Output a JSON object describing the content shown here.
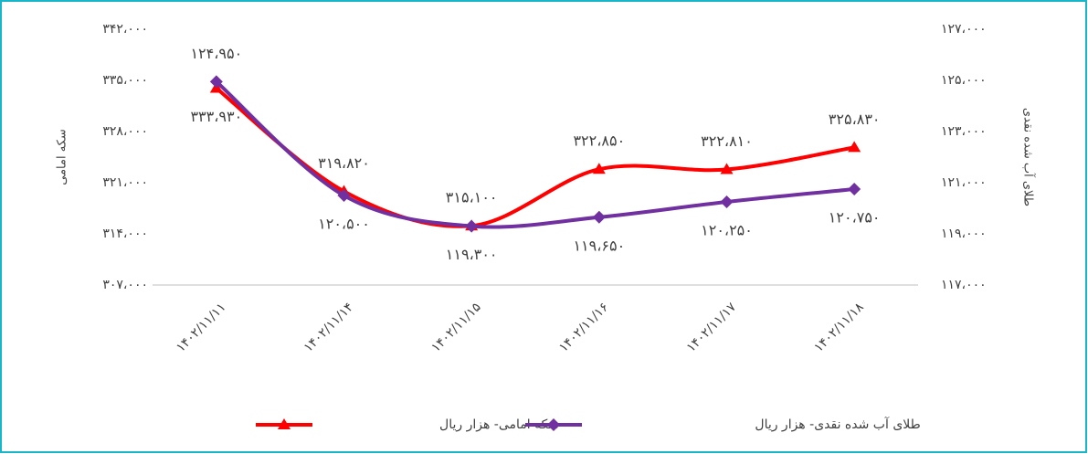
{
  "chart_data": {
    "type": "line",
    "categories": [
      "۱۴۰۲/۱۱/۱۱",
      "۱۴۰۲/۱۱/۱۴",
      "۱۴۰۲/۱۱/۱۵",
      "۱۴۰۲/۱۱/۱۶",
      "۱۴۰۲/۱۱/۱۷",
      "۱۴۰۲/۱۱/۱۸"
    ],
    "ylabel": "سکه امامی",
    "y2label": "طلای آب شده نقدی",
    "ylim": [
      307000,
      342000
    ],
    "yticks": [
      {
        "value": 307000,
        "label": "۳۰۷،۰۰۰"
      },
      {
        "value": 314000,
        "label": "۳۱۴،۰۰۰"
      },
      {
        "value": 321000,
        "label": "۳۲۱،۰۰۰"
      },
      {
        "value": 328000,
        "label": "۳۲۸،۰۰۰"
      },
      {
        "value": 335000,
        "label": "۳۳۵،۰۰۰"
      },
      {
        "value": 342000,
        "label": "۳۴۲،۰۰۰"
      }
    ],
    "y2lim": [
      117000,
      127000
    ],
    "y2ticks": [
      {
        "value": 117000,
        "label": "۱۱۷،۰۰۰"
      },
      {
        "value": 119000,
        "label": "۱۱۹،۰۰۰"
      },
      {
        "value": 121000,
        "label": "۱۲۱،۰۰۰"
      },
      {
        "value": 123000,
        "label": "۱۲۳،۰۰۰"
      },
      {
        "value": 125000,
        "label": "۱۲۵،۰۰۰"
      },
      {
        "value": 127000,
        "label": "۱۲۷،۰۰۰"
      }
    ],
    "series": [
      {
        "name": "سکه امامی- هزار ریال",
        "color": "#ff0000",
        "marker": "triangle",
        "values": [
          333930,
          319820,
          315100,
          322850,
          322810,
          325830
        ],
        "value_labels": [
          "۳۳۳،۹۳۰",
          "۳۱۹،۸۲۰",
          "۳۱۵،۱۰۰",
          "۳۲۲،۸۵۰",
          "۳۲۲،۸۱۰",
          "۳۲۵،۸۳۰"
        ]
      },
      {
        "name": "طلای آب شده نقدی- هزار ریال",
        "color": "#7030a0",
        "marker": "diamond",
        "axis": "y2",
        "values": [
          124950,
          120500,
          119300,
          119650,
          120250,
          120750
        ],
        "value_labels": [
          "۱۲۴،۹۵۰",
          "۱۲۰،۵۰۰",
          "۱۱۹،۳۰۰",
          "۱۱۹،۶۵۰",
          "۱۲۰،۲۵۰",
          "۱۲۰،۷۵۰"
        ]
      }
    ]
  }
}
